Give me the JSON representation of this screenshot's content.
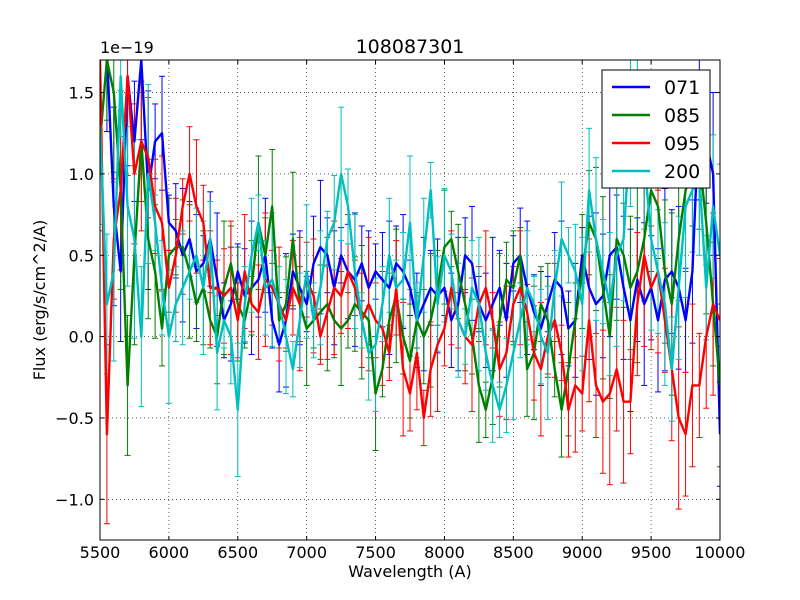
{
  "chart_data": {
    "type": "line",
    "title": "108087301",
    "xlabel": "Wavelength (A)",
    "ylabel": "Flux (erg/s/cm^2/A)",
    "offset_text": "1e−19",
    "xlim": [
      5500,
      10000
    ],
    "ylim": [
      -1.25,
      1.7
    ],
    "grid": true,
    "legend_position": "top-right",
    "x_ticks": [
      5500,
      6000,
      6500,
      7000,
      7500,
      8000,
      8500,
      9000,
      9500,
      10000
    ],
    "x_tick_labels": [
      "5500",
      "6000",
      "6500",
      "7000",
      "7500",
      "8000",
      "8500",
      "9000",
      "9500",
      "10000"
    ],
    "y_ticks": [
      -1.0,
      -0.5,
      0.0,
      0.5,
      1.0,
      1.5
    ],
    "y_tick_labels": [
      "−1.0",
      "−0.5",
      "0.0",
      "0.5",
      "1.0",
      "1.5"
    ],
    "x_start": 5500,
    "x_step": 50,
    "series": [
      {
        "name": "071",
        "color": "#0000ff",
        "values": [
          1.8,
          1.75,
          0.8,
          0.4,
          1.6,
          1.2,
          1.7,
          0.9,
          1.2,
          1.25,
          0.7,
          0.65,
          0.5,
          0.6,
          0.4,
          0.45,
          0.6,
          0.35,
          0.1,
          0.2,
          0.4,
          0.25,
          0.3,
          0.35,
          0.5,
          0.1,
          -0.05,
          0.1,
          0.4,
          0.3,
          0.2,
          0.45,
          0.55,
          0.5,
          0.3,
          0.5,
          0.4,
          0.35,
          0.45,
          0.3,
          0.4,
          0.35,
          0.3,
          0.45,
          0.4,
          0.3,
          0.1,
          0.2,
          0.3,
          0.25,
          0.3,
          0.1,
          0.2,
          0.5,
          0.45,
          0.2,
          0.1,
          0.2,
          0.3,
          0.1,
          0.45,
          0.5,
          0.3,
          0.15,
          0.05,
          0.2,
          0.35,
          0.3,
          0.05,
          0.1,
          0.5,
          0.3,
          0.2,
          0.25,
          0.5,
          0.55,
          0.3,
          0.1,
          0.35,
          0.2,
          0.3,
          0.1,
          0.35,
          0.4,
          0.3,
          0.1,
          0.4,
          1.4,
          1.2,
          1.0,
          -0.6
        ]
      },
      {
        "name": "085",
        "color": "#008000",
        "values": [
          1.2,
          1.7,
          1.5,
          0.9,
          -0.3,
          0.5,
          1.2,
          0.6,
          0.4,
          0.05,
          0.5,
          0.55,
          0.55,
          0.4,
          0.2,
          0.3,
          0.1,
          0.0,
          0.3,
          0.45,
          0.2,
          0.1,
          0.3,
          0.7,
          0.5,
          0.8,
          0.1,
          0.2,
          0.6,
          0.2,
          0.05,
          0.1,
          0.15,
          0.2,
          0.1,
          0.05,
          0.1,
          0.2,
          0.15,
          0.1,
          -0.35,
          -0.2,
          0.1,
          0.25,
          0.0,
          -0.15,
          0.1,
          0.0,
          0.1,
          0.3,
          0.55,
          0.6,
          0.4,
          0.2,
          0.0,
          -0.3,
          -0.45,
          -0.25,
          0.1,
          0.35,
          0.3,
          0.5,
          -0.2,
          -0.1,
          0.2,
          0.1,
          -0.2,
          -0.45,
          -0.2,
          0.1,
          0.4,
          0.7,
          0.6,
          0.3,
          0.0,
          0.6,
          0.5,
          0.3,
          0.4,
          0.6,
          0.9,
          0.8,
          0.4,
          0.2,
          0.6,
          0.9,
          1.0,
          1.1,
          0.7,
          0.2,
          -0.3
        ]
      },
      {
        "name": "095",
        "color": "#ff0000",
        "values": [
          1.7,
          -0.6,
          0.6,
          0.9,
          1.6,
          1.0,
          1.2,
          1.1,
          0.8,
          0.7,
          0.3,
          0.5,
          0.8,
          1.0,
          0.8,
          0.7,
          0.3,
          0.3,
          0.25,
          0.3,
          0.1,
          0.4,
          0.2,
          0.15,
          0.35,
          0.3,
          0.2,
          0.1,
          0.3,
          0.2,
          0.35,
          0.25,
          0.0,
          0.15,
          0.3,
          0.25,
          0.4,
          0.3,
          0.1,
          0.2,
          0.1,
          0.05,
          -0.1,
          0.3,
          -0.2,
          -0.35,
          -0.1,
          -0.5,
          -0.2,
          -0.05,
          0.05,
          0.3,
          0.1,
          0.0,
          -0.05,
          0.2,
          0.3,
          0.1,
          -0.2,
          -0.1,
          0.2,
          0.3,
          0.15,
          -0.1,
          -0.2,
          0.0,
          0.1,
          -0.1,
          -0.45,
          -0.3,
          -0.35,
          0.1,
          -0.3,
          -0.4,
          -0.35,
          -0.2,
          -0.4,
          -0.4,
          0.2,
          0.5,
          0.3,
          0.4,
          0.1,
          -0.2,
          -0.5,
          -0.6,
          -0.3,
          -0.3,
          0.0,
          0.2,
          0.1
        ]
      },
      {
        "name": "200",
        "color": "#00bfbf",
        "values": [
          1.3,
          0.2,
          0.4,
          1.6,
          0.8,
          0.6,
          0.0,
          1.0,
          0.7,
          0.3,
          0.0,
          0.2,
          0.3,
          0.4,
          0.5,
          0.3,
          0.6,
          -0.1,
          0.1,
          0.0,
          -0.45,
          0.2,
          0.5,
          0.7,
          0.3,
          0.35,
          0.2,
          0.0,
          -0.2,
          0.1,
          0.4,
          0.1,
          0.3,
          0.6,
          0.7,
          1.0,
          0.8,
          0.4,
          0.1,
          -0.1,
          -0.05,
          0.2,
          0.5,
          0.3,
          0.35,
          0.7,
          0.1,
          0.5,
          0.9,
          0.2,
          0.5,
          0.4,
          0.1,
          0.0,
          0.3,
          0.2,
          -0.1,
          -0.3,
          -0.45,
          -0.3,
          -0.1,
          0.1,
          0.3,
          0.2,
          0.0,
          -0.1,
          0.3,
          0.6,
          0.5,
          0.4,
          0.2,
          0.9,
          0.6,
          0.4,
          0.2,
          0.5,
          0.6,
          1.3,
          1.4,
          1.1,
          0.6,
          0.4,
          0.2,
          -0.2,
          0.3,
          0.8,
          0.9,
          1.0,
          0.3,
          0.8,
          0.5
        ]
      }
    ]
  }
}
